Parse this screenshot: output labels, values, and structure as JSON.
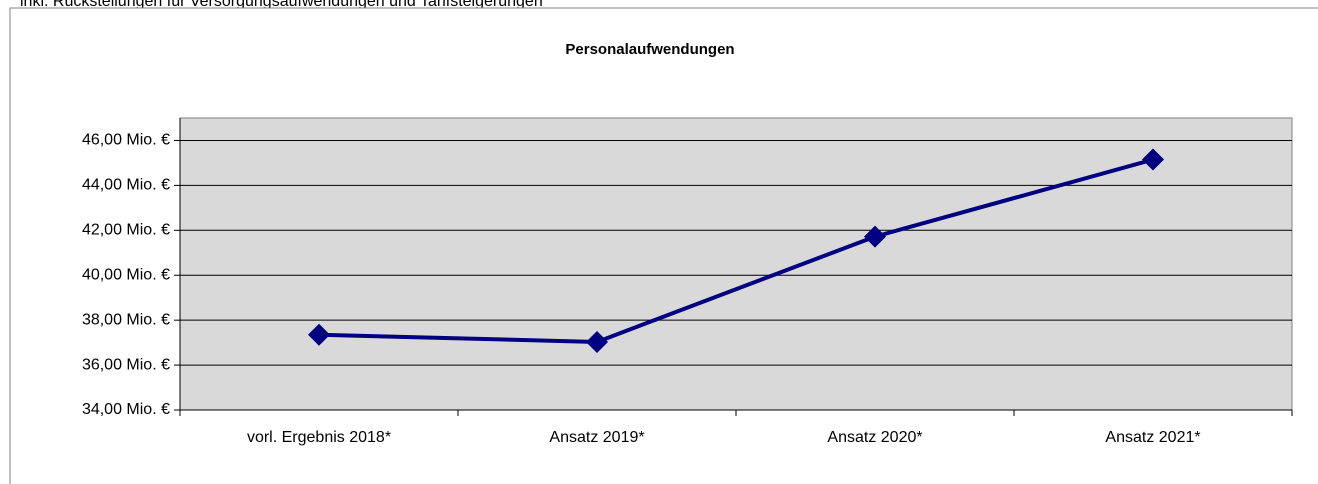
{
  "caption": "inkl. Rückstellungen für Versorgungsaufwendungen und Tarifsteigerungen",
  "chart_data": {
    "type": "line",
    "title": "Personalaufwendungen",
    "categories": [
      "vorl. Ergebnis 2018*",
      "Ansatz 2019*",
      "Ansatz 2020*",
      "Ansatz 2021*"
    ],
    "series": [
      {
        "name": "Personalaufwendungen",
        "color": "#000080",
        "values": [
          37.35,
          37.03,
          41.72,
          45.15
        ]
      }
    ],
    "ylim": [
      34,
      47
    ],
    "yticks": [
      {
        "value": 34,
        "label": "34,00 Mio. €"
      },
      {
        "value": 36,
        "label": "36,00 Mio. €"
      },
      {
        "value": 38,
        "label": "38,00 Mio. €"
      },
      {
        "value": 40,
        "label": "40,00 Mio. €"
      },
      {
        "value": 42,
        "label": "42,00 Mio. €"
      },
      {
        "value": 44,
        "label": "44,00 Mio. €"
      },
      {
        "value": 46,
        "label": "46,00 Mio. €"
      }
    ],
    "grid": true,
    "plot_background": "#d9d9d9"
  }
}
